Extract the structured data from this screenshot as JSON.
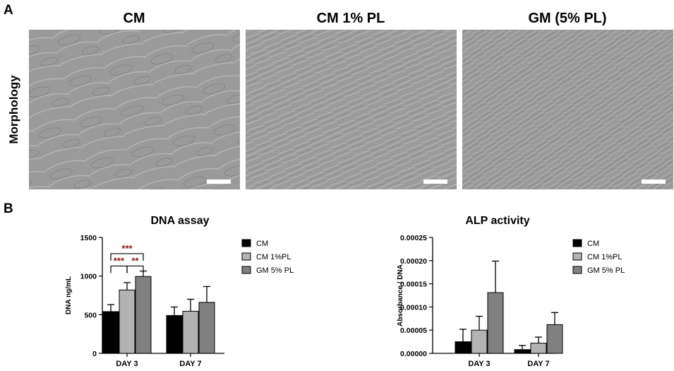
{
  "panel_a": {
    "label": "A",
    "row_label": "Morphology",
    "columns": [
      "CM",
      "CM 1% PL",
      "GM (5% PL)"
    ]
  },
  "panel_b": {
    "label": "B"
  },
  "colors": {
    "CM": "#000000",
    "CM 1%PL": "#b3b3b3",
    "GM 5% PL": "#808080",
    "micrograph_bg": "#9a9a9a"
  },
  "chart_data": [
    {
      "type": "bar",
      "title": "DNA assay",
      "ylabel": "DNA ng/mL",
      "xlabel": "",
      "ylim": [
        0,
        1500
      ],
      "yticks": [
        "0",
        "500",
        "1000",
        "1500"
      ],
      "categories": [
        "DAY 3",
        "DAY 7"
      ],
      "legend_position": "right",
      "series": [
        {
          "name": "CM",
          "values": [
            540,
            490
          ],
          "errors": [
            90,
            110
          ]
        },
        {
          "name": "CM 1%PL",
          "values": [
            820,
            545
          ],
          "errors": [
            95,
            155
          ]
        },
        {
          "name": "GM 5% PL",
          "values": [
            995,
            660
          ],
          "errors": [
            70,
            205
          ]
        }
      ],
      "significance": [
        {
          "label": "***",
          "from": "CM",
          "to": "GM 5% PL",
          "category": "DAY 3"
        },
        {
          "label": "***",
          "from": "CM",
          "to": "CM 1%PL",
          "category": "DAY 3"
        },
        {
          "label": "**",
          "from": "CM 1%PL",
          "to": "GM 5% PL",
          "category": "DAY 3"
        }
      ]
    },
    {
      "type": "bar",
      "title": "ALP activity",
      "ylabel": "Absorbance / DNA",
      "xlabel": "",
      "ylim": [
        0,
        0.00025
      ],
      "yticks": [
        "0.00000",
        "0.00005",
        "0.00010",
        "0.00015",
        "0.00020",
        "0.00025"
      ],
      "categories": [
        "DAY 3",
        "DAY 7"
      ],
      "legend_position": "right",
      "series": [
        {
          "name": "CM",
          "values": [
            2.5e-05,
            8e-06
          ],
          "errors": [
            2.7e-05,
            9e-06
          ]
        },
        {
          "name": "CM 1%PL",
          "values": [
            5e-05,
            2.2e-05
          ],
          "errors": [
            3e-05,
            1.3e-05
          ]
        },
        {
          "name": "GM 5% PL",
          "values": [
            0.000131,
            6.2e-05
          ],
          "errors": [
            6.8e-05,
            2.6e-05
          ]
        }
      ]
    }
  ]
}
